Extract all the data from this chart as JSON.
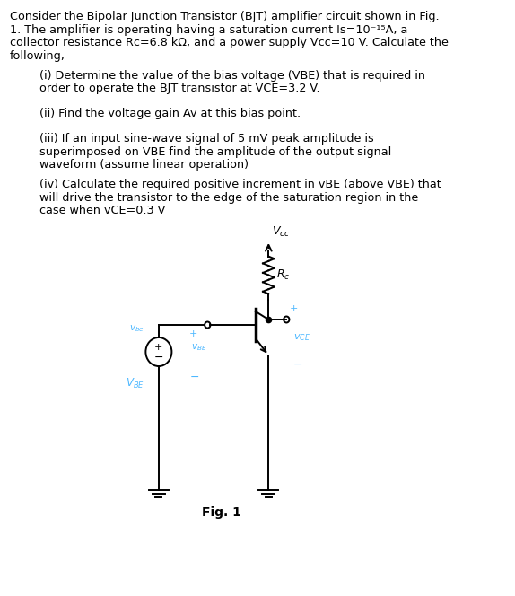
{
  "bg_color": "#ffffff",
  "text_color": "#000000",
  "circuit_color": "#000000",
  "label_color": "#4db8ff",
  "fig_label_color": "#000000",
  "line1": "Consider the Bipolar Junction Transistor (BJT) amplifier circuit shown in Fig.",
  "line2": "1. The amplifier is operating having a saturation current Is=10⁻¹⁵A, a",
  "line3": "collector resistance Rc=6.8 kΩ, and a power supply Vcc=10 V. Calculate the",
  "line4": "following,",
  "q1a": "(i) Determine the value of the bias voltage (VBE) that is required in",
  "q1b": "order to operate the BJT transistor at VCE=3.2 V.",
  "q2a": "(ii) Find the voltage gain Av at this bias point.",
  "q3a": "(iii) If an input sine-wave signal of 5 mV peak amplitude is",
  "q3b": "superimposed on VBE find the amplitude of the output signal",
  "q3c": "waveform (assume linear operation)",
  "q4a": "(iv) Calculate the required positive increment in vBE (above VBE) that",
  "q4b": "will drive the transistor to the edge of the saturation region in the",
  "q4c": "case when vCE=0.3 V",
  "fig_label": "Fig. 1",
  "vcc_label": "$V_{cc}$",
  "rc_label": "$R_c$",
  "vce_label": "$v_{CE}$",
  "vbe_label": "$v_{BE}$",
  "vbe_dc_label": "$V_{BE}$",
  "vbe_ac_label": "$v_{be}$"
}
